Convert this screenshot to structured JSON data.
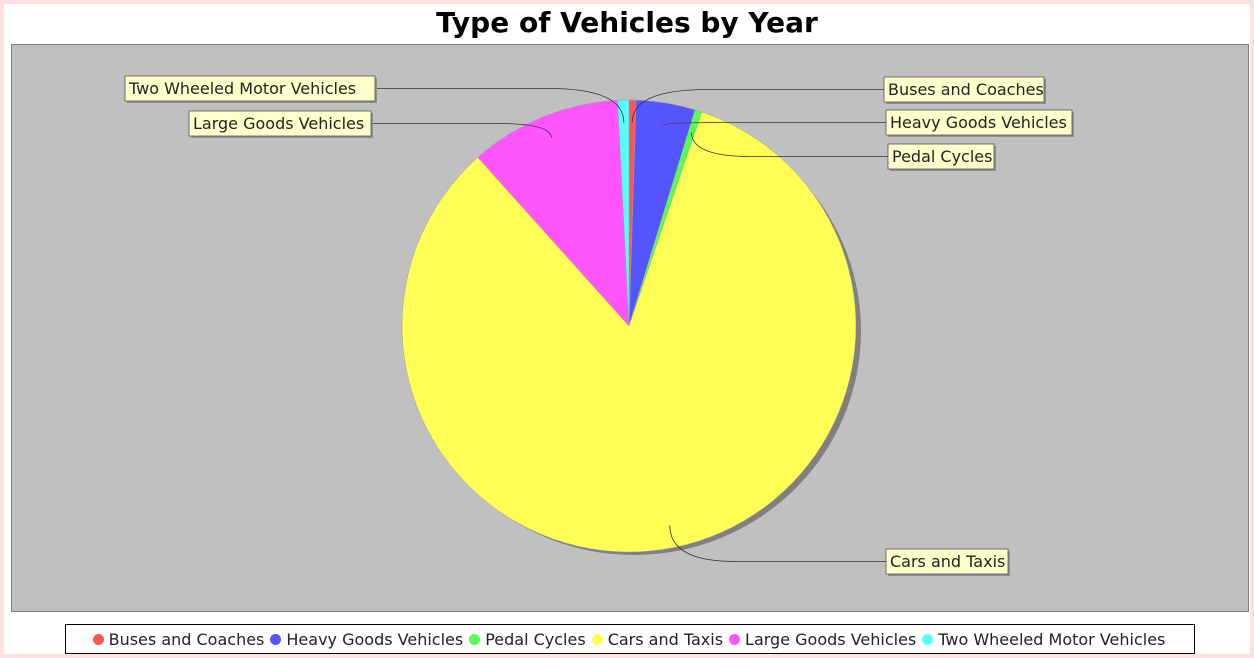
{
  "chart_data": {
    "type": "pie",
    "title": "Type of Vehicles by Year",
    "slices": [
      {
        "label": "Buses and Coaches",
        "value": 0.5,
        "color": "#ff5555"
      },
      {
        "label": "Heavy Goods Vehicles",
        "value": 4.2,
        "color": "#5555ff"
      },
      {
        "label": "Pedal Cycles",
        "value": 0.5,
        "color": "#55ff55"
      },
      {
        "label": "Cars and Taxis",
        "value": 83.2,
        "color": "#ffff55"
      },
      {
        "label": "Large Goods Vehicles",
        "value": 10.8,
        "color": "#ff55ff"
      },
      {
        "label": "Two Wheeled Motor Vehicles",
        "value": 0.8,
        "color": "#55ffff"
      }
    ],
    "legend_position": "bottom",
    "background_color": "#c0c0c0",
    "label_box_color": "#ffffcc"
  }
}
